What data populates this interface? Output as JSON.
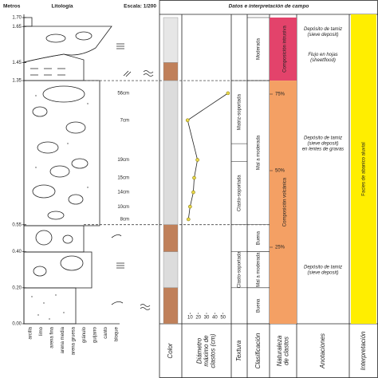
{
  "header": {
    "depth_label": "Metros",
    "lithology_label": "Litología",
    "scale": "Escala: 1/200",
    "panel_title": "Datos e interpretación de campo"
  },
  "depth_axis": {
    "lim": [
      0,
      1.7
    ],
    "ticks": [
      {
        "value": 1.7,
        "label": "1.70"
      },
      {
        "value": 1.65,
        "label": "1.65"
      },
      {
        "value": 1.45,
        "label": "1.45"
      },
      {
        "value": 1.35,
        "label": "1.35"
      },
      {
        "value": 0.55,
        "label": "0.55"
      },
      {
        "value": 0.4,
        "label": "0.40"
      },
      {
        "value": 0.2,
        "label": "0.20"
      },
      {
        "value": 0,
        "label": "0.00"
      }
    ]
  },
  "grain_sizes": [
    "arcilla",
    "limo",
    "arena fina",
    "arena media",
    "arena gruesa",
    "gránulo",
    "guijarro",
    "canto",
    "bloque"
  ],
  "columns": [
    [
      "Color"
    ],
    [
      "Diámetro",
      "máximo de",
      "clastos (cm)"
    ],
    [
      "Textura"
    ],
    [
      "Clasificación"
    ],
    [
      "Naturaleza",
      "de clastos"
    ],
    [
      "Anotaciones"
    ],
    [
      "Interpretación"
    ]
  ],
  "color_column": [
    {
      "from": 1.45,
      "to": 1.7,
      "color": "#e6e6e6"
    },
    {
      "from": 1.35,
      "to": 1.45,
      "color": "#c0805a"
    },
    {
      "from": 0.55,
      "to": 1.35,
      "color": "#dcdcdc"
    },
    {
      "from": 0.4,
      "to": 0.55,
      "color": "#c0805a"
    },
    {
      "from": 0.2,
      "to": 0.4,
      "color": "#dcdcdc"
    },
    {
      "from": 0,
      "to": 0.2,
      "color": "#c0805a"
    }
  ],
  "clast_diameter": {
    "xlim": [
      0,
      60
    ],
    "xticks": [
      10,
      20,
      30,
      40,
      50
    ],
    "color": "#e8d84a",
    "points": [
      {
        "depth": 1.28,
        "value": 56,
        "label": "56cm"
      },
      {
        "depth": 1.13,
        "value": 7,
        "label": "7cm"
      },
      {
        "depth": 0.91,
        "value": 19,
        "label": "19cm"
      },
      {
        "depth": 0.81,
        "value": 15,
        "label": "15cm"
      },
      {
        "depth": 0.73,
        "value": 14,
        "label": "14cm"
      },
      {
        "depth": 0.65,
        "value": 10,
        "label": "10cm"
      },
      {
        "depth": 0.58,
        "value": 8,
        "label": "8cm"
      }
    ]
  },
  "texture": [
    {
      "from": 1.0,
      "to": 1.35,
      "label": "Matriz-soportada"
    },
    {
      "from": 0.55,
      "to": 0.9,
      "label": "Clasto-soportada"
    },
    {
      "from": 0.2,
      "to": 0.4,
      "label": "Clasto-soportada"
    }
  ],
  "sorting": [
    {
      "from": 1.35,
      "to": 1.7,
      "label": "Moderada"
    },
    {
      "from": 0.55,
      "to": 1.35,
      "label": "Mal a moderada"
    },
    {
      "from": 0.4,
      "to": 0.55,
      "label": "Buena"
    },
    {
      "from": 0.2,
      "to": 0.4,
      "label": "Mal a moderada"
    },
    {
      "from": 0,
      "to": 0.2,
      "label": "Buena"
    }
  ],
  "clast_nature": {
    "segments": [
      {
        "from": 1.35,
        "to": 1.7,
        "label": "Composición intrusiva",
        "color": "#e3436b"
      },
      {
        "from": 0,
        "to": 1.35,
        "label": "Composición volcánica",
        "color": "#f4a064"
      }
    ],
    "pct_lim": [
      0,
      100
    ],
    "pct_ticks": [
      {
        "value": 75,
        "label": "75%"
      },
      {
        "value": 50,
        "label": "50%"
      },
      {
        "value": 25,
        "label": "25%"
      }
    ]
  },
  "annotations": [
    {
      "depth": 1.62,
      "lines": [
        "Depósito de tamiz",
        "(sieve deposit)"
      ]
    },
    {
      "depth": 1.48,
      "lines": [
        "Flujo en hojas",
        "(sheetflood)"
      ]
    },
    {
      "depth": 1.0,
      "lines": [
        "Depósito de tamiz",
        "(sieve deposit)",
        "en lentes de gravas"
      ]
    },
    {
      "depth": 0.3,
      "lines": [
        "Depósito de tamiz",
        "(sieve deposit)"
      ]
    }
  ],
  "interpretation": {
    "label": "Facies de abanico aluvial",
    "color": "#ffee00"
  }
}
